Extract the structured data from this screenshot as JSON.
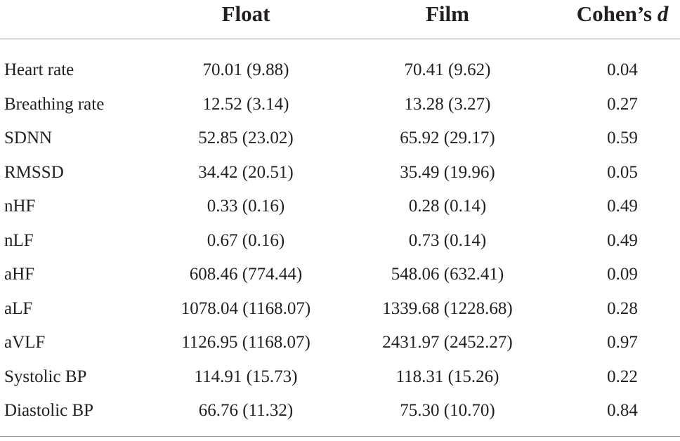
{
  "table": {
    "columns": [
      {
        "label": "Float"
      },
      {
        "label": "Film"
      },
      {
        "label": "Cohen’s",
        "symbol": "d"
      }
    ],
    "rows": [
      [
        "Heart rate",
        "70.01 (9.88)",
        "70.41 (9.62)",
        "0.04"
      ],
      [
        "Breathing rate",
        "12.52 (3.14)",
        "13.28 (3.27)",
        "0.27"
      ],
      [
        "SDNN",
        "52.85 (23.02)",
        "65.92 (29.17)",
        "0.59"
      ],
      [
        "RMSSD",
        "34.42 (20.51)",
        "35.49 (19.96)",
        "0.05"
      ],
      [
        "nHF",
        "0.33 (0.16)",
        "0.28 (0.14)",
        "0.49"
      ],
      [
        "nLF",
        "0.67 (0.16)",
        "0.73 (0.14)",
        "0.49"
      ],
      [
        "aHF",
        "608.46 (774.44)",
        "548.06 (632.41)",
        "0.09"
      ],
      [
        "aLF",
        "1078.04 (1168.07)",
        "1339.68 (1228.68)",
        "0.28"
      ],
      [
        "aVLF",
        "1126.95 (1168.07)",
        "2431.97 (2452.27)",
        "0.97"
      ],
      [
        "Systolic BP",
        "114.91 (15.73)",
        "118.31 (15.26)",
        "0.22"
      ],
      [
        "Diastolic BP",
        "66.76 (11.32)",
        "75.30 (10.70)",
        "0.84"
      ]
    ]
  }
}
